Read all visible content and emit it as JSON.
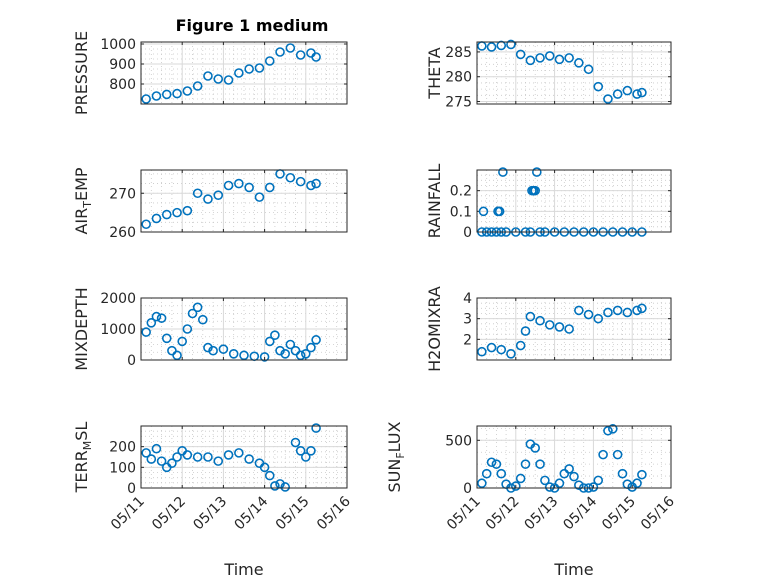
{
  "figure": {
    "title": "Figure 1 medium"
  },
  "chart_data": [
    {
      "type": "scatter",
      "ylabel": "PRESSURE",
      "ylim": [
        700,
        1010
      ],
      "yticks": [
        800,
        900,
        1000
      ],
      "marker_color": "#0072bd",
      "x": [
        "05/11 03:00",
        "05/11 09:00",
        "05/11 15:00",
        "05/11 21:00",
        "05/12 03:00",
        "05/12 09:00",
        "05/12 15:00",
        "05/12 21:00",
        "05/13 03:00",
        "05/13 09:00",
        "05/13 15:00",
        "05/13 21:00",
        "05/14 03:00",
        "05/14 09:00",
        "05/14 15:00",
        "05/14 21:00",
        "05/15 03:00",
        "05/15 06:00"
      ],
      "y": [
        725,
        740,
        748,
        752,
        765,
        790,
        840,
        825,
        820,
        855,
        875,
        880,
        915,
        960,
        980,
        945,
        955,
        935
      ]
    },
    {
      "type": "scatter",
      "ylabel": "THETA",
      "ylim": [
        274.5,
        287
      ],
      "yticks": [
        275,
        280,
        285
      ],
      "marker_color": "#0072bd",
      "x": [
        "05/11 03:00",
        "05/11 09:00",
        "05/11 15:00",
        "05/11 21:00",
        "05/12 03:00",
        "05/12 09:00",
        "05/12 15:00",
        "05/12 21:00",
        "05/13 03:00",
        "05/13 09:00",
        "05/13 15:00",
        "05/13 21:00",
        "05/14 03:00",
        "05/14 09:00",
        "05/14 15:00",
        "05/14 21:00",
        "05/15 03:00",
        "05/15 06:00"
      ],
      "y": [
        286.2,
        286.0,
        286.3,
        286.5,
        284.5,
        283.3,
        283.8,
        284.2,
        283.5,
        283.8,
        282.8,
        281.5,
        278.0,
        275.5,
        276.5,
        277.2,
        276.5,
        276.8
      ]
    },
    {
      "type": "scatter",
      "ylabel": "AIR_TEMP",
      "ylim": [
        260,
        276
      ],
      "yticks": [
        260,
        270
      ],
      "marker_color": "#0072bd",
      "x": [
        "05/11 03:00",
        "05/11 09:00",
        "05/11 15:00",
        "05/11 21:00",
        "05/12 03:00",
        "05/12 09:00",
        "05/12 15:00",
        "05/12 21:00",
        "05/13 03:00",
        "05/13 09:00",
        "05/13 15:00",
        "05/13 21:00",
        "05/14 03:00",
        "05/14 09:00",
        "05/14 15:00",
        "05/14 21:00",
        "05/15 03:00",
        "05/15 06:00"
      ],
      "y": [
        262,
        263.5,
        264.5,
        265,
        265.5,
        270,
        268.5,
        269.5,
        272,
        272.5,
        271.5,
        269,
        271.5,
        275,
        274,
        273,
        272,
        272.5
      ]
    },
    {
      "type": "scatter",
      "ylabel": "RAINFALL",
      "ylim": [
        0,
        0.3
      ],
      "yticks": [
        0,
        0.1,
        0.2
      ],
      "marker_color": "#0072bd",
      "x": [
        "05/11 03:00",
        "05/11 06:00",
        "05/11 09:00",
        "05/11 12:00",
        "05/11 15:00",
        "05/11 18:00",
        "05/12 00:00",
        "05/12 06:00",
        "05/12 09:00",
        "05/12 15:00",
        "05/12 18:00",
        "05/13 00:00",
        "05/13 06:00",
        "05/13 12:00",
        "05/13 18:00",
        "05/14 00:00",
        "05/14 06:00",
        "05/14 12:00",
        "05/14 18:00",
        "05/15 00:00",
        "05/15 06:00",
        "05/11 04:00",
        "05/11 13:00",
        "05/11 14:00",
        "05/11 16:00",
        "05/12 10:00",
        "05/12 12:00",
        "05/12 13:00",
        "05/12 11:00"
      ],
      "y": [
        0,
        0,
        0,
        0,
        0,
        0,
        0,
        0,
        0,
        0,
        0,
        0,
        0,
        0,
        0,
        0,
        0,
        0,
        0,
        0,
        0,
        0.1,
        0.1,
        0.1,
        0.29,
        0.2,
        0.2,
        0.29,
        0.2
      ]
    },
    {
      "type": "scatter",
      "ylabel": "MIXDEPTH",
      "ylim": [
        0,
        2000
      ],
      "yticks": [
        0,
        1000,
        2000
      ],
      "marker_color": "#0072bd",
      "x": [
        "05/11 03:00",
        "05/11 06:00",
        "05/11 09:00",
        "05/11 12:00",
        "05/11 15:00",
        "05/11 18:00",
        "05/11 21:00",
        "05/12 00:00",
        "05/12 03:00",
        "05/12 06:00",
        "05/12 09:00",
        "05/12 12:00",
        "05/12 15:00",
        "05/12 18:00",
        "05/13 00:00",
        "05/13 06:00",
        "05/13 12:00",
        "05/13 18:00",
        "05/14 00:00",
        "05/14 03:00",
        "05/14 06:00",
        "05/14 09:00",
        "05/14 12:00",
        "05/14 15:00",
        "05/14 18:00",
        "05/14 21:00",
        "05/15 00:00",
        "05/15 03:00",
        "05/15 06:00"
      ],
      "y": [
        900,
        1200,
        1400,
        1350,
        700,
        300,
        150,
        600,
        1000,
        1500,
        1700,
        1300,
        400,
        300,
        350,
        200,
        150,
        120,
        100,
        600,
        800,
        300,
        200,
        500,
        300,
        150,
        200,
        400,
        650
      ]
    },
    {
      "type": "scatter",
      "ylabel": "H2OMIXRA",
      "ylim": [
        1,
        4
      ],
      "yticks": [
        2,
        3,
        4
      ],
      "marker_color": "#0072bd",
      "x": [
        "05/11 03:00",
        "05/11 09:00",
        "05/11 15:00",
        "05/11 21:00",
        "05/12 03:00",
        "05/12 06:00",
        "05/12 09:00",
        "05/12 15:00",
        "05/12 21:00",
        "05/13 03:00",
        "05/13 09:00",
        "05/13 15:00",
        "05/13 21:00",
        "05/14 03:00",
        "05/14 09:00",
        "05/14 15:00",
        "05/14 21:00",
        "05/15 03:00",
        "05/15 06:00"
      ],
      "y": [
        1.4,
        1.6,
        1.5,
        1.3,
        1.7,
        2.4,
        3.1,
        2.9,
        2.7,
        2.6,
        2.5,
        3.4,
        3.2,
        3.0,
        3.3,
        3.4,
        3.3,
        3.4,
        3.5
      ]
    },
    {
      "type": "scatter",
      "ylabel": "TERR_MSL",
      "ylim": [
        0,
        300
      ],
      "yticks": [
        0,
        100,
        200
      ],
      "marker_color": "#0072bd",
      "x": [
        "05/11 03:00",
        "05/11 06:00",
        "05/11 09:00",
        "05/11 12:00",
        "05/11 15:00",
        "05/11 18:00",
        "05/11 21:00",
        "05/12 00:00",
        "05/12 03:00",
        "05/12 09:00",
        "05/12 15:00",
        "05/12 21:00",
        "05/13 03:00",
        "05/13 09:00",
        "05/13 15:00",
        "05/13 21:00",
        "05/14 00:00",
        "05/14 03:00",
        "05/14 06:00",
        "05/14 09:00",
        "05/14 12:00",
        "05/14 18:00",
        "05/14 21:00",
        "05/15 00:00",
        "05/15 03:00",
        "05/15 06:00"
      ],
      "y": [
        170,
        140,
        190,
        130,
        100,
        120,
        150,
        180,
        160,
        150,
        150,
        130,
        160,
        170,
        140,
        120,
        100,
        60,
        10,
        20,
        5,
        220,
        180,
        150,
        180,
        290
      ]
    },
    {
      "type": "scatter",
      "ylabel": "SUN_FLUX",
      "ylim": [
        0,
        650
      ],
      "yticks": [
        0,
        500
      ],
      "marker_color": "#0072bd",
      "x": [
        "05/11 03:00",
        "05/11 06:00",
        "05/11 09:00",
        "05/11 12:00",
        "05/11 15:00",
        "05/11 18:00",
        "05/11 21:00",
        "05/12 00:00",
        "05/12 03:00",
        "05/12 06:00",
        "05/12 09:00",
        "05/12 12:00",
        "05/12 15:00",
        "05/12 18:00",
        "05/12 21:00",
        "05/13 00:00",
        "05/13 03:00",
        "05/13 06:00",
        "05/13 09:00",
        "05/13 12:00",
        "05/13 15:00",
        "05/13 18:00",
        "05/13 21:00",
        "05/14 00:00",
        "05/14 03:00",
        "05/14 06:00",
        "05/14 09:00",
        "05/14 12:00",
        "05/14 15:00",
        "05/14 18:00",
        "05/14 21:00",
        "05/15 00:00",
        "05/15 03:00",
        "05/15 06:00"
      ],
      "y": [
        50,
        150,
        270,
        250,
        150,
        40,
        0,
        20,
        100,
        250,
        460,
        420,
        250,
        80,
        10,
        0,
        50,
        150,
        200,
        120,
        30,
        0,
        0,
        10,
        80,
        350,
        600,
        620,
        350,
        150,
        40,
        10,
        50,
        140
      ]
    }
  ],
  "shared_x": {
    "xlim": [
      "05/11",
      "05/16"
    ],
    "xticks": [
      "05/11",
      "05/12",
      "05/13",
      "05/14",
      "05/15",
      "05/16"
    ],
    "xlabel": "Time"
  }
}
